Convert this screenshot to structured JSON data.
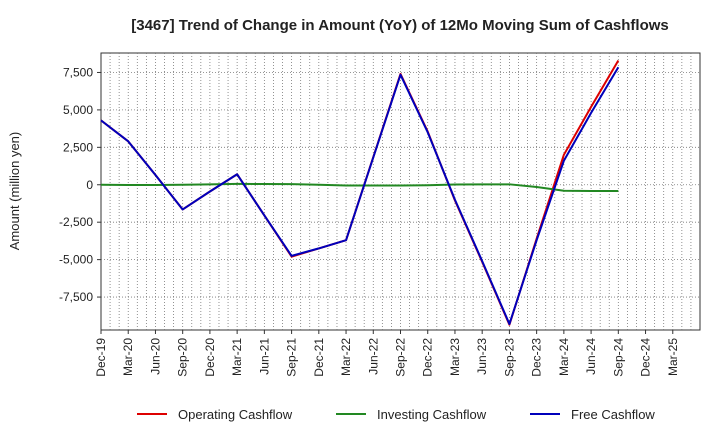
{
  "chart_data": {
    "type": "line",
    "title": "[3467]  Trend of Change in Amount (YoY) of 12Mo Moving Sum of Cashflows",
    "xlabel": "",
    "ylabel": "Amount (million yen)",
    "ylim": [
      -9700,
      8800
    ],
    "yticks": [
      7500,
      5000,
      2500,
      0,
      -2500,
      -5000,
      -7500
    ],
    "ytick_labels": [
      "7,500",
      "5,000",
      "2,500",
      "0",
      "-2,500",
      "-5,000",
      "-7,500"
    ],
    "categories": [
      "Dec-19",
      "Mar-20",
      "Jun-20",
      "Sep-20",
      "Dec-20",
      "Mar-21",
      "Jun-21",
      "Sep-21",
      "Dec-21",
      "Mar-22",
      "Jun-22",
      "Sep-22",
      "Dec-22",
      "Mar-23",
      "Jun-23",
      "Sep-23",
      "Dec-23",
      "Mar-24",
      "Jun-24",
      "Sep-24",
      "Dec-24",
      "Mar-25"
    ],
    "grid": true,
    "legend_position": "bottom",
    "series": [
      {
        "name": "Operating Cashflow",
        "color": "#dd0000",
        "values": [
          4300,
          2900,
          650,
          -1650,
          -450,
          700,
          -2050,
          -4800,
          -4250,
          -3700,
          null,
          7400,
          3550,
          -1050,
          -5150,
          -9350,
          -3600,
          2000,
          5200,
          8300,
          null,
          null
        ]
      },
      {
        "name": "Investing Cashflow",
        "color": "#228822",
        "values": [
          0,
          -20,
          -20,
          0,
          30,
          60,
          50,
          40,
          0,
          -50,
          -50,
          -50,
          -30,
          20,
          30,
          30,
          -150,
          -400,
          -420,
          -420,
          null,
          null
        ]
      },
      {
        "name": "Free Cashflow",
        "color": "#0000bb",
        "values": [
          4300,
          2900,
          650,
          -1650,
          -450,
          700,
          -2050,
          -4750,
          -4250,
          -3700,
          null,
          7350,
          3500,
          -1000,
          -5100,
          -9300,
          -3700,
          1600,
          4800,
          7850,
          null,
          null
        ]
      }
    ]
  }
}
